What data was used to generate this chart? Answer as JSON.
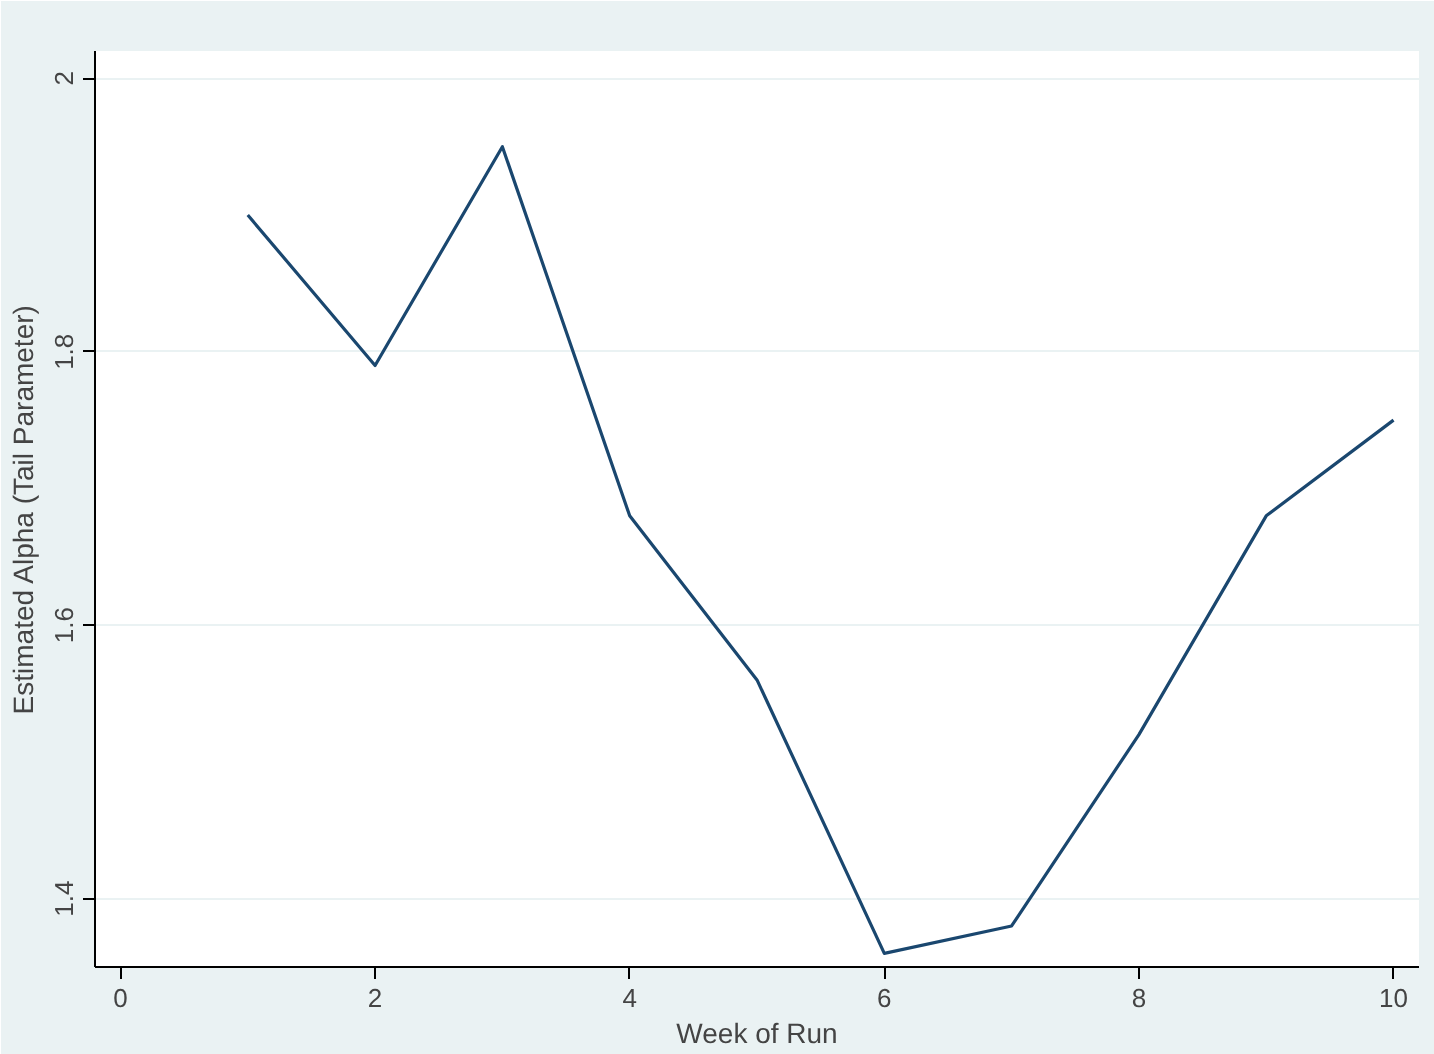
{
  "chart_data": {
    "type": "line",
    "xlabel": "Week of Run",
    "ylabel": "Estimated Alpha (Tail Parameter)",
    "x": [
      1,
      2,
      3,
      4,
      5,
      6,
      7,
      8,
      9,
      10
    ],
    "series": [
      {
        "color": "#1a476f",
        "values": [
          1.9,
          1.79,
          1.95,
          1.68,
          1.56,
          1.36,
          1.38,
          1.52,
          1.68,
          1.75
        ]
      }
    ],
    "xlim": [
      -0.2,
      10.2
    ],
    "ylim": [
      1.35,
      2.02
    ],
    "xticks": [
      0,
      2,
      4,
      6,
      8,
      10
    ],
    "yticks": [
      1.4,
      1.6,
      1.8,
      2
    ],
    "grid": "y",
    "marker": "none",
    "line_style": "solid"
  }
}
